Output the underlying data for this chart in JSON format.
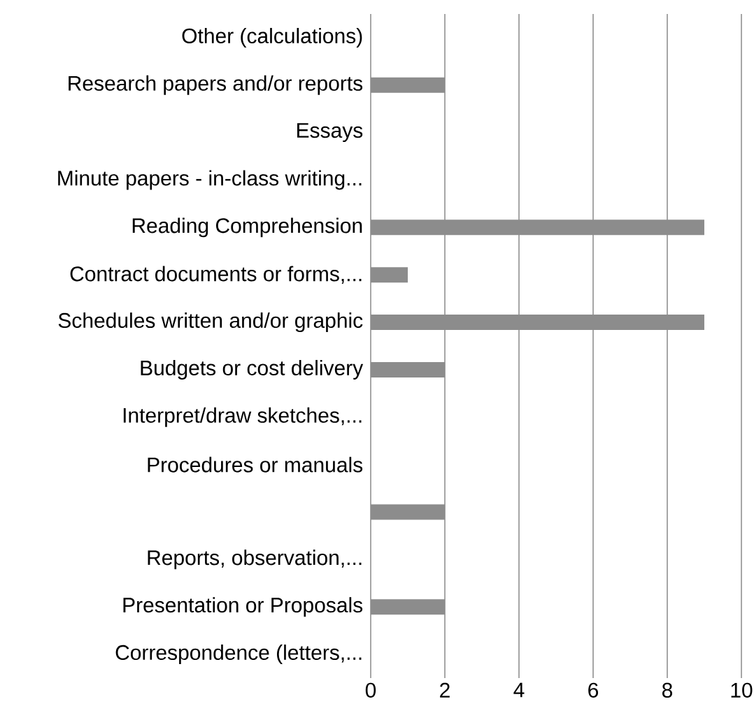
{
  "chart_data": {
    "type": "bar",
    "orientation": "horizontal",
    "categories": [
      "Other (calculations)",
      "Research papers and/or reports",
      "Essays",
      "Minute papers - in-class writing...",
      "Reading Comprehension",
      "Contract documents  or forms,...",
      "Schedules written and/or graphic",
      "Budgets or cost delivery",
      "Interpret/draw sketches,...",
      "Procedures or manuals",
      null,
      "Reports, observation,...",
      "Presentation or Proposals",
      "Correspondence (letters,..."
    ],
    "values": [
      0,
      2,
      0,
      0,
      9,
      1,
      9,
      2,
      0,
      0,
      2,
      0,
      2,
      0
    ],
    "color": "#8c8c8c",
    "xlim": [
      0,
      10
    ],
    "xticks": [
      0,
      2,
      4,
      6,
      8,
      10
    ],
    "grid": "x"
  }
}
